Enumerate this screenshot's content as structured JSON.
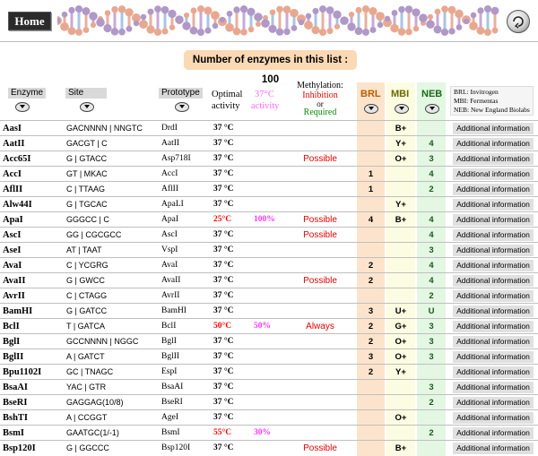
{
  "header": {
    "home_label": "Home"
  },
  "count_text": "Number of enzymes in this list : 100",
  "columns": {
    "enzyme": "Enzyme",
    "site": "Site",
    "prototype": "Prototype",
    "optimal": "Optimal",
    "activity": "activity",
    "temp37": "37°C",
    "temp37_activity": "activity",
    "methylation": "Methylation:",
    "inhibition": "Inhibition",
    "or": "or",
    "required": "Required",
    "brl": "BRL",
    "mbi": "MBI",
    "neb": "NEB"
  },
  "legend": [
    "BRL: Invitrogen",
    "MBI: Fermentas",
    "NEB: New England Biolabs"
  ],
  "colors": {
    "possible": "#e00000",
    "pink": "#ff33ff",
    "temp_red": "#ff0000",
    "peach": "#fbd9b5"
  },
  "info_label": "Additional information",
  "rows": [
    {
      "enzyme": "AasI",
      "site": "GACNNNN | NNGTC",
      "proto": "DrdI",
      "temp": "37 °C",
      "act": "",
      "meth": "",
      "brl": "",
      "mbi": "B+",
      "neb": ""
    },
    {
      "enzyme": "AatII",
      "site": "GACGT | C",
      "proto": "AatII",
      "temp": "37 °C",
      "act": "",
      "meth": "",
      "brl": "",
      "mbi": "Y+",
      "neb": "4"
    },
    {
      "enzyme": "Acc65I",
      "site": "G | GTACC",
      "proto": "Asp718I",
      "temp": "37 °C",
      "act": "",
      "meth": "Possible",
      "brl": "",
      "mbi": "O+",
      "neb": "3"
    },
    {
      "enzyme": "AccI",
      "site": "GT | MKAC",
      "proto": "AccI",
      "temp": "37 °C",
      "act": "",
      "meth": "",
      "brl": "1",
      "mbi": "",
      "neb": "4"
    },
    {
      "enzyme": "AflII",
      "site": "C | TTAAG",
      "proto": "AflII",
      "temp": "37 °C",
      "act": "",
      "meth": "",
      "brl": "1",
      "mbi": "",
      "neb": "2"
    },
    {
      "enzyme": "Alw44I",
      "site": "G | TGCAC",
      "proto": "ApaLI",
      "temp": "37 °C",
      "act": "",
      "meth": "",
      "brl": "",
      "mbi": "Y+",
      "neb": ""
    },
    {
      "enzyme": "ApaI",
      "site": "GGGCC | C",
      "proto": "ApaI",
      "temp": "25°C",
      "act": "100%",
      "meth": "Possible",
      "brl": "4",
      "mbi": "B+",
      "neb": "4",
      "hot": true
    },
    {
      "enzyme": "AscI",
      "site": "GG | CGCGCC",
      "proto": "AscI",
      "temp": "37 °C",
      "act": "",
      "meth": "Possible",
      "brl": "",
      "mbi": "",
      "neb": "4"
    },
    {
      "enzyme": "AseI",
      "site": "AT | TAAT",
      "proto": "VspI",
      "temp": "37 °C",
      "act": "",
      "meth": "",
      "brl": "",
      "mbi": "",
      "neb": "3"
    },
    {
      "enzyme": "AvaI",
      "site": "C | YCGRG",
      "proto": "AvaI",
      "temp": "37 °C",
      "act": "",
      "meth": "",
      "brl": "2",
      "mbi": "",
      "neb": "4"
    },
    {
      "enzyme": "AvaII",
      "site": "G | GWCC",
      "proto": "AvaII",
      "temp": "37 °C",
      "act": "",
      "meth": "Possible",
      "brl": "2",
      "mbi": "",
      "neb": "4"
    },
    {
      "enzyme": "AvrII",
      "site": "C | CTAGG",
      "proto": "AvrII",
      "temp": "37 °C",
      "act": "",
      "meth": "",
      "brl": "",
      "mbi": "",
      "neb": "2"
    },
    {
      "enzyme": "BamHI",
      "site": "G | GATCC",
      "proto": "BamHI",
      "temp": "37 °C",
      "act": "",
      "meth": "",
      "brl": "3",
      "mbi": "U+",
      "neb": "U"
    },
    {
      "enzyme": "BclI",
      "site": "T | GATCA",
      "proto": "BclI",
      "temp": "50°C",
      "act": "50%",
      "meth": "Always",
      "brl": "2",
      "mbi": "G+",
      "neb": "3",
      "hot": true
    },
    {
      "enzyme": "BglI",
      "site": "GCCNNNN | NGGC",
      "proto": "BglI",
      "temp": "37 °C",
      "act": "",
      "meth": "",
      "brl": "2",
      "mbi": "O+",
      "neb": "3"
    },
    {
      "enzyme": "BglII",
      "site": "A | GATCT",
      "proto": "BglII",
      "temp": "37 °C",
      "act": "",
      "meth": "",
      "brl": "3",
      "mbi": "O+",
      "neb": "3"
    },
    {
      "enzyme": "Bpu1102I",
      "site": "GC | TNAGC",
      "proto": "EspI",
      "temp": "37 °C",
      "act": "",
      "meth": "",
      "brl": "2",
      "mbi": "Y+",
      "neb": ""
    },
    {
      "enzyme": "BsaAI",
      "site": "YAC | GTR",
      "proto": "BsaAI",
      "temp": "37 °C",
      "act": "",
      "meth": "",
      "brl": "",
      "mbi": "",
      "neb": "3"
    },
    {
      "enzyme": "BseRI",
      "site": "GAGGAG(10/8)",
      "proto": "BseRI",
      "temp": "37 °C",
      "act": "",
      "meth": "",
      "brl": "",
      "mbi": "",
      "neb": "2"
    },
    {
      "enzyme": "BshTI",
      "site": "A | CCGGT",
      "proto": "AgeI",
      "temp": "37 °C",
      "act": "",
      "meth": "",
      "brl": "",
      "mbi": "O+",
      "neb": ""
    },
    {
      "enzyme": "BsmI",
      "site": "GAATGC(1/-1)",
      "proto": "BsmI",
      "temp": "55°C",
      "act": "30%",
      "meth": "",
      "brl": "",
      "mbi": "",
      "neb": "2",
      "hot": true
    },
    {
      "enzyme": "Bsp120I",
      "site": "G | GGCCC",
      "proto": "Bsp120I",
      "temp": "37 °C",
      "act": "",
      "meth": "Possible",
      "brl": "",
      "mbi": "B+",
      "neb": ""
    }
  ]
}
